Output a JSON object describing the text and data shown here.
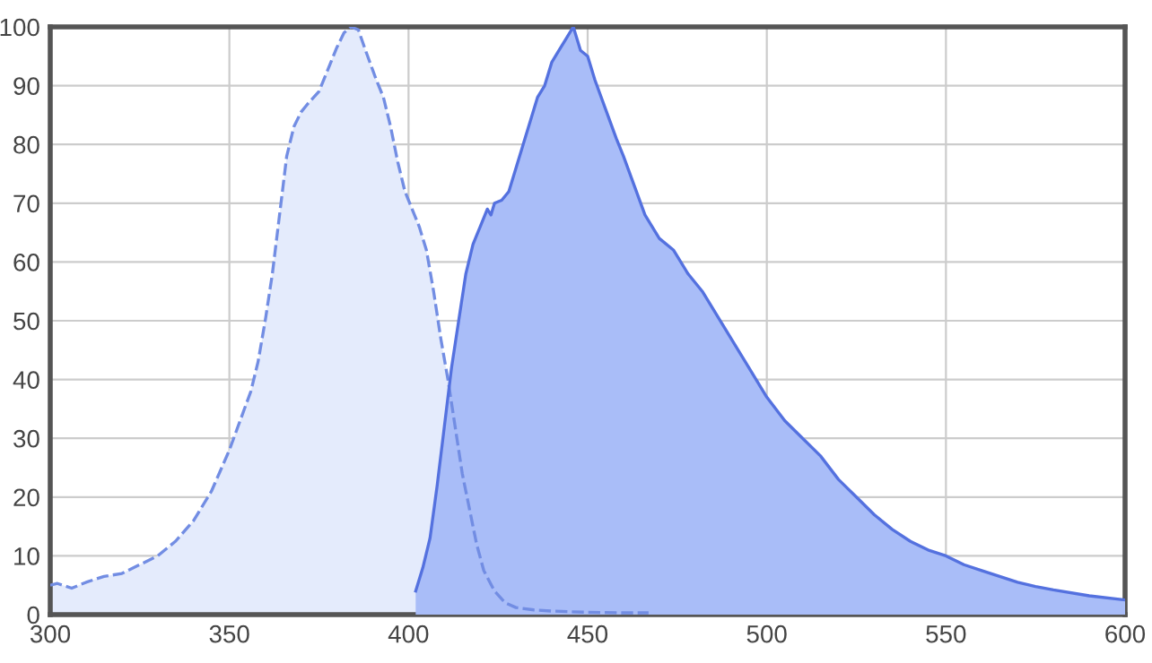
{
  "chart_data": {
    "type": "area",
    "xlim": [
      300,
      600
    ],
    "ylim": [
      0,
      100
    ],
    "xticks": [
      300,
      350,
      400,
      450,
      500,
      550,
      600
    ],
    "yticks": [
      0,
      10,
      20,
      30,
      40,
      50,
      60,
      70,
      80,
      90,
      100
    ],
    "grid": true,
    "series": [
      {
        "color": "#e4ebfc",
        "line_style": "dashed",
        "x": [
          300,
          302,
          306,
          310,
          315,
          320,
          325,
          330,
          335,
          340,
          345,
          350,
          353,
          356,
          358,
          360,
          362,
          364,
          366,
          368,
          370,
          372,
          375,
          377,
          380,
          382,
          384,
          386,
          388,
          391,
          393,
          395,
          397,
          399,
          401,
          403,
          405,
          407,
          409,
          411,
          413,
          415,
          417,
          419,
          421,
          424,
          427,
          430,
          435,
          440,
          450,
          460,
          467
        ],
        "values": [
          5,
          5.3,
          4.5,
          5.5,
          6.5,
          7,
          8.5,
          10,
          12.5,
          16,
          21,
          28,
          33,
          38,
          43,
          50,
          58,
          68,
          78,
          83,
          85.5,
          87,
          89,
          92,
          96.5,
          99,
          100,
          99.5,
          96,
          91,
          88,
          83,
          77,
          72,
          69,
          66,
          62,
          55,
          47,
          40,
          32,
          24,
          18,
          12,
          7.5,
          4,
          2,
          1.2,
          0.8,
          0.6,
          0.4,
          0.3,
          0.3
        ]
      },
      {
        "color": "#a9bdf8",
        "line_style": "solid",
        "x": [
          402,
          404,
          406,
          408,
          410,
          412,
          414,
          416,
          418,
          420,
          422,
          423,
          424,
          426,
          428,
          430,
          432,
          434,
          436,
          438,
          440,
          442,
          444,
          446,
          448,
          450,
          452,
          455,
          458,
          460,
          463,
          466,
          470,
          474,
          478,
          482,
          486,
          490,
          495,
          500,
          505,
          510,
          515,
          520,
          525,
          530,
          535,
          540,
          545,
          550,
          555,
          560,
          565,
          570,
          575,
          580,
          590,
          600
        ],
        "values": [
          4,
          8,
          13,
          22,
          32,
          42,
          50,
          58,
          63,
          66,
          69,
          68,
          70,
          70.5,
          72,
          76,
          80,
          84,
          88,
          90,
          94,
          96,
          98,
          100,
          96,
          95,
          91,
          86,
          81,
          78,
          73,
          68,
          64,
          62,
          58,
          55,
          51,
          47,
          42,
          37,
          33,
          30,
          27,
          23,
          20,
          17,
          14.5,
          12.5,
          11,
          10,
          8.5,
          7.5,
          6.5,
          5.5,
          4.8,
          4.2,
          3.2,
          2.5
        ]
      }
    ]
  }
}
